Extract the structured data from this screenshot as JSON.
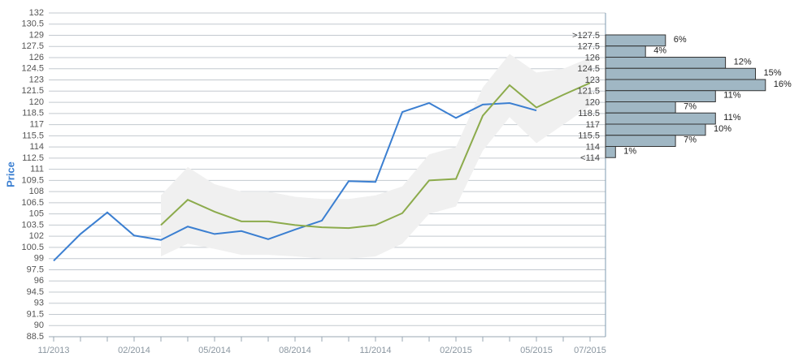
{
  "chart_data": {
    "type": "line",
    "y_label": "Price",
    "ylim": [
      88.5,
      132
    ],
    "yticks": [
      88.5,
      90,
      91.5,
      93,
      94.5,
      96,
      97.5,
      99,
      100.5,
      102,
      103.5,
      105,
      106.5,
      108,
      109.5,
      111,
      112.5,
      114,
      115.5,
      117,
      118.5,
      120,
      121.5,
      123,
      124.5,
      126,
      127.5,
      129,
      130.5,
      132
    ],
    "grid": true,
    "categories": [
      "11/2013",
      null,
      null,
      "02/2014",
      null,
      null,
      "05/2014",
      null,
      null,
      "08/2014",
      null,
      null,
      "11/2014",
      null,
      null,
      "02/2015",
      null,
      null,
      "05/2015",
      null,
      "07/2015"
    ],
    "series": [
      {
        "color": "#3b7fd1",
        "values": [
          98.7,
          102.3,
          105.2,
          102.1,
          101.5,
          103.3,
          102.3,
          102.7,
          101.6,
          102.9,
          104.1,
          109.4,
          109.3,
          118.7,
          119.9,
          117.9,
          119.7,
          119.9,
          118.9,
          null,
          null
        ]
      },
      {
        "color": "#8cab4c",
        "values": [
          null,
          null,
          null,
          null,
          103.5,
          106.9,
          105.3,
          104.0,
          104.0,
          103.5,
          103.2,
          103.1,
          103.5,
          105.1,
          109.5,
          109.7,
          118.2,
          122.3,
          119.3,
          121.0,
          122.6
        ]
      }
    ],
    "band": {
      "color": "#f0f0f0",
      "upper": [
        null,
        null,
        null,
        null,
        107.5,
        111.3,
        109,
        108,
        108,
        107.3,
        107,
        107,
        107.5,
        108.7,
        113,
        114,
        122,
        126.5,
        124,
        124.5,
        126
      ],
      "lower": [
        null,
        null,
        null,
        null,
        99.3,
        101,
        100.3,
        99.5,
        99.5,
        99.3,
        99,
        99,
        99.3,
        101,
        105,
        106,
        113.5,
        118,
        114.5,
        117,
        119.5
      ]
    },
    "histogram": {
      "type": "bar",
      "color": "#a0b7c4",
      "bins": [
        ">127.5",
        "127.5",
        "126",
        "124.5",
        "123",
        "121.5",
        "120",
        "118.5",
        "117",
        "115.5",
        "114",
        "<114"
      ],
      "values": [
        6,
        4,
        12,
        15,
        16,
        11,
        7,
        11,
        10,
        7,
        1
      ],
      "value_labels": [
        "6%",
        "4%",
        "12%",
        "15%",
        "16%",
        "11%",
        "7%",
        "11%",
        "10%",
        "7%",
        "1%"
      ]
    }
  }
}
